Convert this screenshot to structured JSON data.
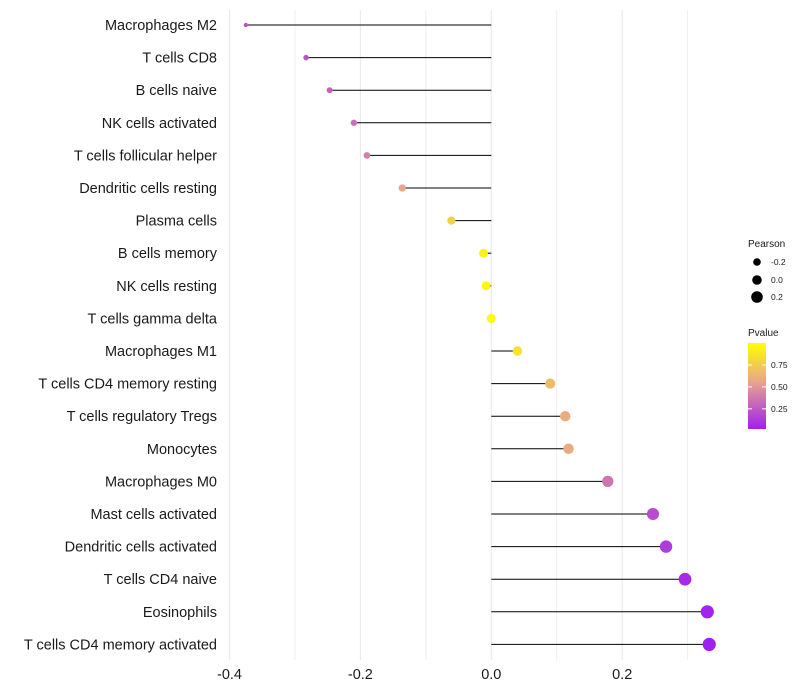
{
  "chart_data": {
    "type": "lollipop",
    "title": "",
    "xlabel": "",
    "ylabel": "",
    "xlim": [
      -0.4,
      0.35
    ],
    "x_ticks": [
      -0.4,
      -0.2,
      0.0,
      0.2
    ],
    "x_tick_labels": [
      "-0.4",
      "-0.2",
      "0.0",
      "0.2"
    ],
    "categories": [
      "Macrophages M2",
      "T cells CD8",
      "B cells naive",
      "NK cells activated",
      "T cells follicular helper",
      "Dendritic cells resting",
      "Plasma cells",
      "B cells memory",
      "NK cells resting",
      "T cells gamma delta",
      "Macrophages M1",
      "T cells CD4 memory resting",
      "T cells regulatory  Tregs ",
      "Monocytes",
      "Macrophages M0",
      "Mast cells activated",
      "Dendritic cells activated",
      "T cells CD4 naive",
      "Eosinophils",
      "T cells CD4 memory activated"
    ],
    "series": [
      {
        "name": "Pearson",
        "values": [
          -0.375,
          -0.283,
          -0.247,
          -0.21,
          -0.19,
          -0.136,
          -0.061,
          -0.012,
          -0.008,
          0.0,
          0.04,
          0.09,
          0.113,
          0.118,
          0.178,
          0.247,
          0.267,
          0.296,
          0.33,
          0.333
        ]
      },
      {
        "name": "Pvalue",
        "values": [
          0.2,
          0.2,
          0.26,
          0.32,
          0.37,
          0.52,
          0.75,
          0.93,
          0.96,
          1.0,
          0.85,
          0.63,
          0.56,
          0.54,
          0.33,
          0.18,
          0.12,
          0.06,
          0.03,
          0.02
        ]
      }
    ],
    "legend": {
      "size": {
        "title": "Pearson",
        "labels": [
          "-0.2",
          "0.0",
          "0.2"
        ],
        "values": [
          -0.2,
          0.0,
          0.2
        ]
      },
      "color": {
        "title": "Pvalue",
        "labels": [
          "0.75",
          "0.50",
          "0.25"
        ],
        "values": [
          0.75,
          0.5,
          0.25
        ],
        "range": [
          0.02,
          1.0
        ],
        "low_color": "#A020F0",
        "mid_color": "#E8A58C",
        "high_color": "#FFFF00"
      },
      "position": "right"
    },
    "colors": {
      "stem": "#000000",
      "grid": "#EBEBEB",
      "background": "#FFFFFF"
    }
  }
}
